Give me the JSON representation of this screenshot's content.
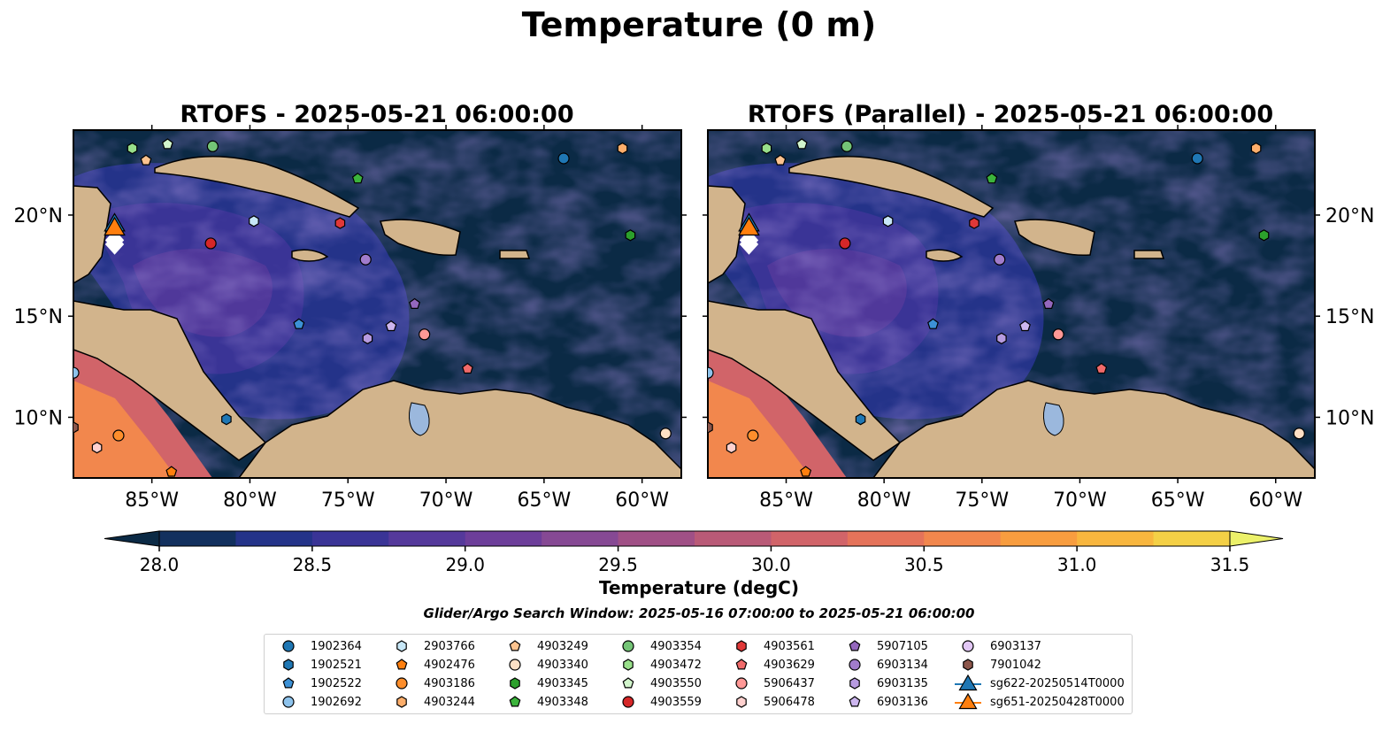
{
  "figure": {
    "suptitle": "Temperature (0 m)",
    "search_window": "Glider/Argo Search Window: 2025-05-16 07:00:00 to 2025-05-21 06:00:00"
  },
  "colorbar": {
    "label": "Temperature (degC)",
    "ticks": [
      "28.0",
      "28.5",
      "29.0",
      "29.5",
      "30.0",
      "30.5",
      "31.0",
      "31.5"
    ],
    "range": [
      28.0,
      31.5
    ],
    "step": 0.25,
    "colors": [
      "#0b2a45",
      "#12305e",
      "#243389",
      "#3a3496",
      "#55399b",
      "#6d3e9a",
      "#864994",
      "#a05086",
      "#b95a77",
      "#d16469",
      "#e5735a",
      "#f2874d",
      "#f89d3f",
      "#f8b63e",
      "#f4d046",
      "#ecf16a"
    ]
  },
  "colors": {
    "ocean_cool": "#0b2a45",
    "land": "#d2b48c",
    "lake": "#9bb8dd"
  },
  "chart_data": [
    {
      "type": "heatmap",
      "title": "RTOFS - 2025-05-21 06:00:00",
      "x_ticks": [
        "85°W",
        "80°W",
        "75°W",
        "70°W",
        "65°W",
        "60°W"
      ],
      "x_tick_values": [
        -85,
        -80,
        -75,
        -70,
        -65,
        -60
      ],
      "y_ticks": [
        "10°N",
        "15°N",
        "20°N"
      ],
      "y_tick_values": [
        10,
        15,
        20
      ],
      "xlim": [
        -89,
        -58
      ],
      "ylim": [
        7,
        24.2
      ],
      "markers": [
        {
          "id": "1902364",
          "lon": -64.0,
          "lat": 22.8
        },
        {
          "id": "1902521",
          "lon": -81.2,
          "lat": 9.9
        },
        {
          "id": "1902522",
          "lon": -77.5,
          "lat": 14.6
        },
        {
          "id": "1902692",
          "lon": -89.0,
          "lat": 12.2
        },
        {
          "id": "2903766",
          "lon": -79.8,
          "lat": 19.7
        },
        {
          "id": "4902476",
          "lon": -84.0,
          "lat": 7.3
        },
        {
          "id": "4903186",
          "lon": -86.7,
          "lat": 9.1
        },
        {
          "id": "4903244",
          "lon": -61.0,
          "lat": 23.3
        },
        {
          "id": "4903249",
          "lon": -85.3,
          "lat": 22.7
        },
        {
          "id": "4903340",
          "lon": -58.8,
          "lat": 9.2
        },
        {
          "id": "4903345",
          "lon": -60.6,
          "lat": 19.0
        },
        {
          "id": "4903348",
          "lon": -74.5,
          "lat": 21.8
        },
        {
          "id": "4903354",
          "lon": -81.9,
          "lat": 23.4
        },
        {
          "id": "4903472",
          "lon": -86.0,
          "lat": 23.3
        },
        {
          "id": "4903550",
          "lon": -84.2,
          "lat": 23.5
        },
        {
          "id": "4903559",
          "lon": -82.0,
          "lat": 18.6
        },
        {
          "id": "4903561",
          "lon": -75.4,
          "lat": 19.6
        },
        {
          "id": "4903629",
          "lon": -68.9,
          "lat": 12.4
        },
        {
          "id": "5906437",
          "lon": -71.1,
          "lat": 14.1
        },
        {
          "id": "5906478",
          "lon": -87.8,
          "lat": 8.5
        },
        {
          "id": "5907105",
          "lon": -71.6,
          "lat": 15.6
        },
        {
          "id": "6903134",
          "lon": -74.1,
          "lat": 17.8
        },
        {
          "id": "6903135",
          "lon": -74.0,
          "lat": 13.9
        },
        {
          "id": "6903136",
          "lon": -72.8,
          "lat": 14.5
        },
        {
          "id": "7901042",
          "lon": -89.0,
          "lat": 9.5
        },
        {
          "id": "sg622-20250514T0000",
          "lon": -86.9,
          "lat": 19.5
        },
        {
          "id": "sg651-20250428T0000",
          "lon": -86.9,
          "lat": 19.3
        }
      ]
    },
    {
      "type": "heatmap",
      "title": "RTOFS (Parallel) - 2025-05-21 06:00:00",
      "x_ticks": [
        "85°W",
        "80°W",
        "75°W",
        "70°W",
        "65°W",
        "60°W"
      ],
      "x_tick_values": [
        -85,
        -80,
        -75,
        -70,
        -65,
        -60
      ],
      "y_ticks": [
        "10°N",
        "15°N",
        "20°N"
      ],
      "y_tick_values": [
        10,
        15,
        20
      ],
      "xlim": [
        -89,
        -58
      ],
      "ylim": [
        7,
        24.2
      ],
      "markers": [
        {
          "id": "1902364",
          "lon": -64.0,
          "lat": 22.8
        },
        {
          "id": "1902521",
          "lon": -81.2,
          "lat": 9.9
        },
        {
          "id": "1902522",
          "lon": -77.5,
          "lat": 14.6
        },
        {
          "id": "1902692",
          "lon": -89.0,
          "lat": 12.2
        },
        {
          "id": "2903766",
          "lon": -79.8,
          "lat": 19.7
        },
        {
          "id": "4902476",
          "lon": -84.0,
          "lat": 7.3
        },
        {
          "id": "4903186",
          "lon": -86.7,
          "lat": 9.1
        },
        {
          "id": "4903244",
          "lon": -61.0,
          "lat": 23.3
        },
        {
          "id": "4903249",
          "lon": -85.3,
          "lat": 22.7
        },
        {
          "id": "4903340",
          "lon": -58.8,
          "lat": 9.2
        },
        {
          "id": "4903345",
          "lon": -60.6,
          "lat": 19.0
        },
        {
          "id": "4903348",
          "lon": -74.5,
          "lat": 21.8
        },
        {
          "id": "4903354",
          "lon": -81.9,
          "lat": 23.4
        },
        {
          "id": "4903472",
          "lon": -86.0,
          "lat": 23.3
        },
        {
          "id": "4903550",
          "lon": -84.2,
          "lat": 23.5
        },
        {
          "id": "4903559",
          "lon": -82.0,
          "lat": 18.6
        },
        {
          "id": "4903561",
          "lon": -75.4,
          "lat": 19.6
        },
        {
          "id": "4903629",
          "lon": -68.9,
          "lat": 12.4
        },
        {
          "id": "5906437",
          "lon": -71.1,
          "lat": 14.1
        },
        {
          "id": "5906478",
          "lon": -87.8,
          "lat": 8.5
        },
        {
          "id": "5907105",
          "lon": -71.6,
          "lat": 15.6
        },
        {
          "id": "6903134",
          "lon": -74.1,
          "lat": 17.8
        },
        {
          "id": "6903135",
          "lon": -74.0,
          "lat": 13.9
        },
        {
          "id": "6903136",
          "lon": -72.8,
          "lat": 14.5
        },
        {
          "id": "7901042",
          "lon": -89.0,
          "lat": 9.5
        },
        {
          "id": "sg622-20250514T0000",
          "lon": -86.9,
          "lat": 19.5
        },
        {
          "id": "sg651-20250428T0000",
          "lon": -86.9,
          "lat": 19.3
        }
      ]
    }
  ],
  "legend": {
    "entries": [
      {
        "label": "1902364",
        "shape": "circle",
        "color": "#1f77b4"
      },
      {
        "label": "1902521",
        "shape": "hexagon",
        "color": "#1f77b4"
      },
      {
        "label": "1902522",
        "shape": "pentagon",
        "color": "#3c91d6"
      },
      {
        "label": "1902692",
        "shape": "circle",
        "color": "#8ec3ec"
      },
      {
        "label": "2903766",
        "shape": "hexagon",
        "color": "#c7e7f7"
      },
      {
        "label": "4902476",
        "shape": "pentagon",
        "color": "#ff7f0e"
      },
      {
        "label": "4903186",
        "shape": "circle",
        "color": "#fd8e2c"
      },
      {
        "label": "4903244",
        "shape": "hexagon",
        "color": "#fdae6b"
      },
      {
        "label": "4903249",
        "shape": "pentagon",
        "color": "#fdc38f"
      },
      {
        "label": "4903340",
        "shape": "circle",
        "color": "#fde0c5"
      },
      {
        "label": "4903345",
        "shape": "hexagon",
        "color": "#2ca02c"
      },
      {
        "label": "4903348",
        "shape": "pentagon",
        "color": "#3cb43c"
      },
      {
        "label": "4903354",
        "shape": "circle",
        "color": "#74c476"
      },
      {
        "label": "4903472",
        "shape": "hexagon",
        "color": "#98df8a"
      },
      {
        "label": "4903550",
        "shape": "pentagon",
        "color": "#d2f5cc"
      },
      {
        "label": "4903559",
        "shape": "circle",
        "color": "#d62728"
      },
      {
        "label": "4903561",
        "shape": "hexagon",
        "color": "#e03838"
      },
      {
        "label": "4903629",
        "shape": "pentagon",
        "color": "#f06a6a"
      },
      {
        "label": "5906437",
        "shape": "circle",
        "color": "#ff9896"
      },
      {
        "label": "5906478",
        "shape": "hexagon",
        "color": "#ffd1cf"
      },
      {
        "label": "5907105",
        "shape": "pentagon",
        "color": "#9467bd"
      },
      {
        "label": "6903134",
        "shape": "circle",
        "color": "#a17ccc"
      },
      {
        "label": "6903135",
        "shape": "hexagon",
        "color": "#b79be0"
      },
      {
        "label": "6903136",
        "shape": "pentagon",
        "color": "#cdb6ef"
      },
      {
        "label": "6903137",
        "shape": "circle",
        "color": "#e2c7f5"
      },
      {
        "label": "7901042",
        "shape": "hexagon",
        "color": "#8c564b"
      },
      {
        "label": "sg622-20250514T0000",
        "shape": "triangle",
        "color": "#1f77b4"
      },
      {
        "label": "sg651-20250428T0000",
        "shape": "triangle",
        "color": "#ff7f0e"
      }
    ]
  }
}
